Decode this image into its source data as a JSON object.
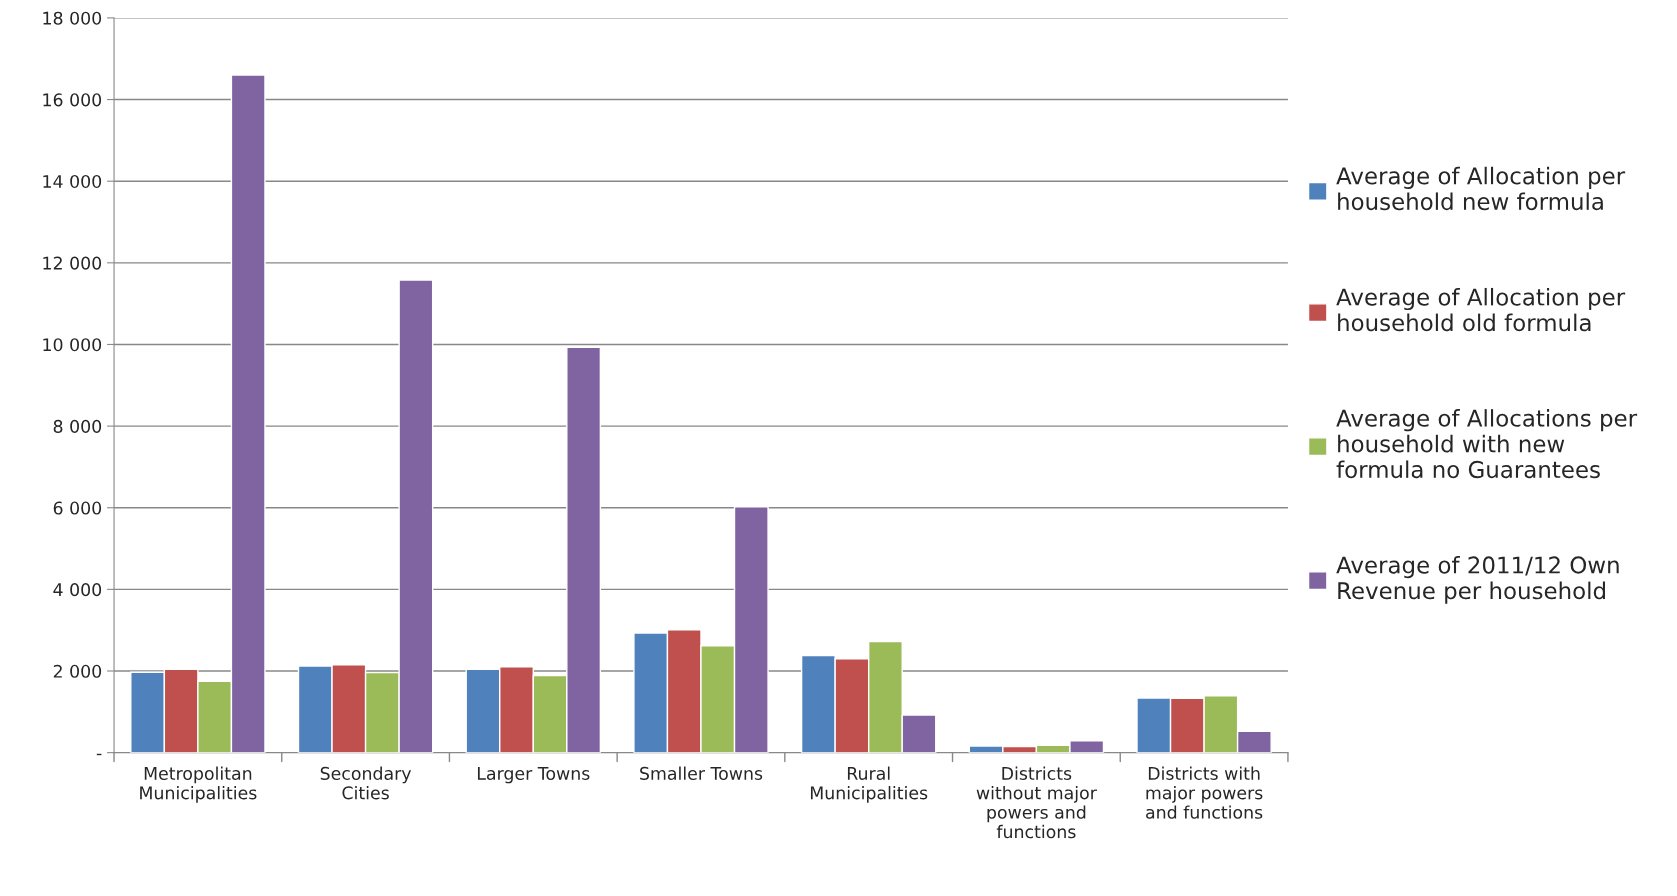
{
  "chart_data": {
    "type": "bar",
    "categories": [
      "Metropolitan\nMunicipalities",
      "Secondary\nCities",
      "Larger Towns",
      "Smaller Towns",
      "Rural\nMunicipalities",
      "Districts\nwithout major\npowers and\nfunctions",
      "Districts with\nmajor powers\nand functions"
    ],
    "series": [
      {
        "name": "Average of Allocation per\nhousehold new formula",
        "color": "#4f81bd",
        "values": [
          1970,
          2120,
          2040,
          2930,
          2380,
          160,
          1340
        ]
      },
      {
        "name": "Average of Allocation per\nhousehold old formula",
        "color": "#c0504d",
        "values": [
          2040,
          2150,
          2100,
          3010,
          2300,
          150,
          1330
        ]
      },
      {
        "name": "Average of Allocations per\nhousehold with new\nformula no Guarantees",
        "color": "#9bbb59",
        "values": [
          1750,
          1960,
          1890,
          2620,
          2720,
          180,
          1390
        ]
      },
      {
        "name": "Average of 2011/12 Own\nRevenue per household",
        "color": "#8064a2",
        "values": [
          16600,
          11580,
          9930,
          6020,
          920,
          290,
          520
        ]
      }
    ],
    "ylim": [
      0,
      18000
    ],
    "yticks": [
      {
        "value": 0,
        "label": "-"
      },
      {
        "value": 2000,
        "label": "2 000"
      },
      {
        "value": 4000,
        "label": "4 000"
      },
      {
        "value": 6000,
        "label": "6 000"
      },
      {
        "value": 8000,
        "label": "8 000"
      },
      {
        "value": 10000,
        "label": "10 000"
      },
      {
        "value": 12000,
        "label": "12 000"
      },
      {
        "value": 14000,
        "label": "14 000"
      },
      {
        "value": 16000,
        "label": "16 000"
      },
      {
        "value": 18000,
        "label": "18 000"
      }
    ],
    "grid": "y",
    "legend": "right"
  }
}
